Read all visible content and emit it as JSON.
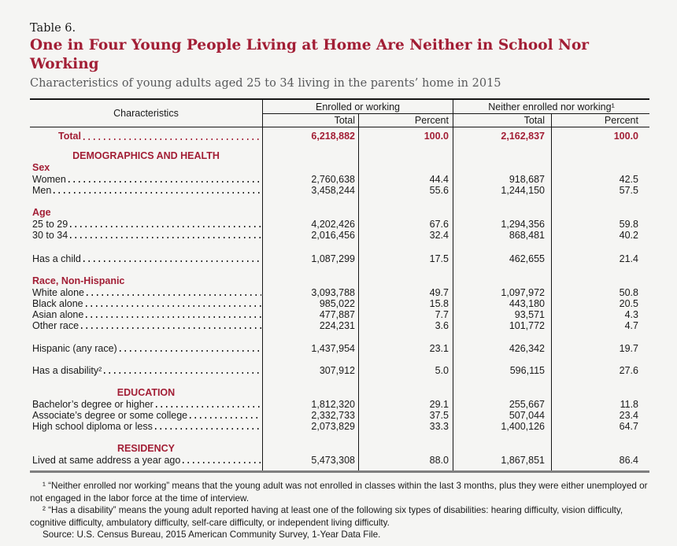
{
  "heading": {
    "table_label": "Table 6.",
    "title": "One in Four Young People Living at Home Are Neither in School Nor Working",
    "subtitle": "Characteristics of young adults aged 25 to 34 living in the parents’ home in 2015"
  },
  "colors": {
    "accent_red": "#A21E35",
    "background": "#F5F5F3",
    "subtitle_gray": "#58595B"
  },
  "table": {
    "header": {
      "characteristics": "Characteristics",
      "group_enrolled": "Enrolled or working",
      "group_neither": "Neither enrolled nor working¹",
      "sub_labels": [
        "Total",
        "Percent",
        "Total",
        "Percent"
      ]
    },
    "rows": [
      {
        "type": "total",
        "label": "Total",
        "values": [
          "6,218,882",
          "100.0",
          "2,162,837",
          "100.0"
        ]
      },
      {
        "type": "spacer",
        "height": 6
      },
      {
        "type": "section",
        "label": "DEMOGRAPHICS AND HEALTH"
      },
      {
        "type": "subhead",
        "label": "Sex"
      },
      {
        "type": "data",
        "label": "Women",
        "values": [
          "2,760,638",
          "44.4",
          "918,687",
          "42.5"
        ]
      },
      {
        "type": "data",
        "label": "Men",
        "values": [
          "3,458,244",
          "55.6",
          "1,244,150",
          "57.5"
        ]
      },
      {
        "type": "spacer",
        "height": 14
      },
      {
        "type": "subhead",
        "label": "Age"
      },
      {
        "type": "data",
        "label": "25 to 29",
        "values": [
          "4,202,426",
          "67.6",
          "1,294,356",
          "59.8"
        ]
      },
      {
        "type": "data",
        "label": "30 to 34",
        "values": [
          "2,016,456",
          "32.4",
          "868,481",
          "40.2"
        ]
      },
      {
        "type": "spacer",
        "height": 16
      },
      {
        "type": "data",
        "label": "Has a child",
        "values": [
          "1,087,299",
          "17.5",
          "462,655",
          "21.4"
        ]
      },
      {
        "type": "spacer",
        "height": 14
      },
      {
        "type": "subhead",
        "label": "Race, Non-Hispanic"
      },
      {
        "type": "data",
        "label": "White alone",
        "values": [
          "3,093,788",
          "49.7",
          "1,097,972",
          "50.8"
        ]
      },
      {
        "type": "data",
        "label": "Black alone",
        "values": [
          "985,022",
          "15.8",
          "443,180",
          "20.5"
        ]
      },
      {
        "type": "data",
        "label": "Asian alone",
        "values": [
          "477,887",
          "7.7",
          "93,571",
          "4.3"
        ]
      },
      {
        "type": "data",
        "label": "Other race",
        "values": [
          "224,231",
          "3.6",
          "101,772",
          "4.7"
        ]
      },
      {
        "type": "spacer",
        "height": 15
      },
      {
        "type": "data",
        "label": "Hispanic (any race)",
        "values": [
          "1,437,954",
          "23.1",
          "426,342",
          "19.7"
        ]
      },
      {
        "type": "spacer",
        "height": 14
      },
      {
        "type": "data",
        "label": "Has a disability²",
        "values": [
          "307,912",
          "5.0",
          "596,115",
          "27.6"
        ]
      },
      {
        "type": "spacer",
        "height": 13
      },
      {
        "type": "section",
        "label": "EDUCATION"
      },
      {
        "type": "data",
        "label": "Bachelor’s degree or higher",
        "values": [
          "1,812,320",
          "29.1",
          "255,667",
          "11.8"
        ]
      },
      {
        "type": "data",
        "label": "Associate’s degree or some college",
        "values": [
          "2,332,733",
          "37.5",
          "507,044",
          "23.4"
        ]
      },
      {
        "type": "data",
        "label": "High school diploma or less",
        "values": [
          "2,073,829",
          "33.3",
          "1,400,126",
          "64.7"
        ]
      },
      {
        "type": "spacer",
        "height": 13
      },
      {
        "type": "section",
        "label": "RESIDENCY"
      },
      {
        "type": "data",
        "label": "Lived at same address a year ago",
        "values": [
          "5,473,308",
          "88.0",
          "1,867,851",
          "86.4"
        ]
      },
      {
        "type": "spacer",
        "height": 6
      }
    ]
  },
  "footnotes": [
    "¹ “Neither enrolled nor working” means that the young adult was not enrolled in classes within the last 3 months, plus they were either unemployed or not engaged in the labor force at the time of interview.",
    "² “Has a disability” means the young adult reported having at least one of the following six types of disabilities: hearing difficulty, vision difficulty, cognitive difficulty, ambulatory difficulty, self-care difficulty, or independent living difficulty.",
    "Source: U.S. Census Bureau, 2015 American Community Survey, 1-Year Data File."
  ]
}
